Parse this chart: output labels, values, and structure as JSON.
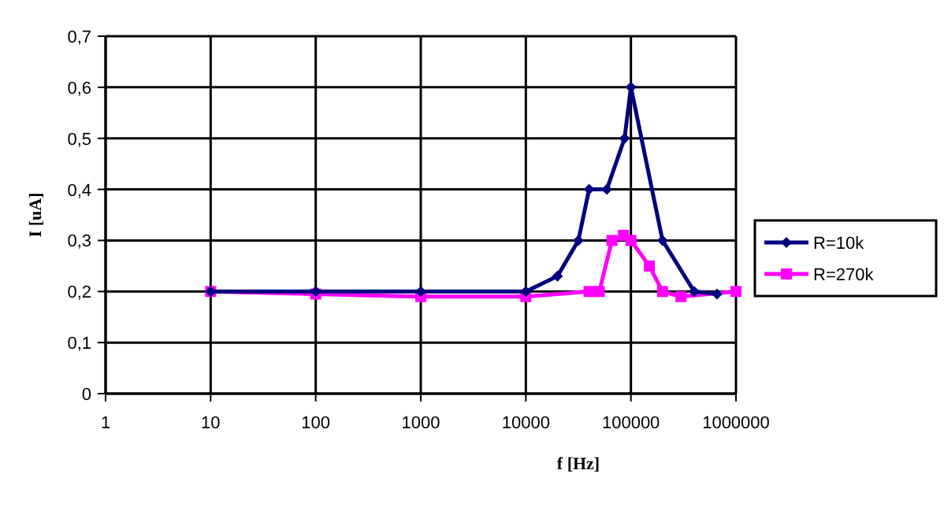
{
  "chart_data": {
    "type": "line",
    "xlabel": "f [Hz]",
    "ylabel": "I [uA]",
    "log": "x",
    "grid": true,
    "legend": "right",
    "xlim": [
      1,
      1000000
    ],
    "xticks": [
      1,
      10,
      100,
      1000,
      10000,
      100000,
      1000000
    ],
    "ylim": [
      0,
      0.7
    ],
    "yticks": [
      {
        "value": 0,
        "label": "0"
      },
      {
        "value": 0.1,
        "label": "0,1"
      },
      {
        "value": 0.2,
        "label": "0,2"
      },
      {
        "value": 0.3,
        "label": "0,3"
      },
      {
        "value": 0.4,
        "label": "0,4"
      },
      {
        "value": 0.5,
        "label": "0,5"
      },
      {
        "value": 0.6,
        "label": "0,6"
      },
      {
        "value": 0.7,
        "label": "0,7"
      }
    ],
    "series": [
      {
        "name": "R=10k",
        "color": "#000080",
        "marker": "diamond",
        "x": [
          10,
          100,
          1000,
          10000,
          20000,
          31600,
          40000,
          59000,
          87000,
          100000,
          200000,
          400000,
          660000
        ],
        "values": [
          0.2,
          0.2,
          0.2,
          0.2,
          0.23,
          0.3,
          0.4,
          0.4,
          0.5,
          0.6,
          0.3,
          0.2,
          0.195
        ]
      },
      {
        "name": "R=270k",
        "color": "#ff00ff",
        "marker": "square",
        "x": [
          10,
          100,
          1000,
          10000,
          40000,
          50000,
          66000,
          85000,
          100000,
          150000,
          200000,
          300000,
          1000000
        ],
        "values": [
          0.2,
          0.195,
          0.19,
          0.19,
          0.2,
          0.2,
          0.3,
          0.31,
          0.3,
          0.25,
          0.2,
          0.19,
          0.2
        ]
      }
    ]
  }
}
